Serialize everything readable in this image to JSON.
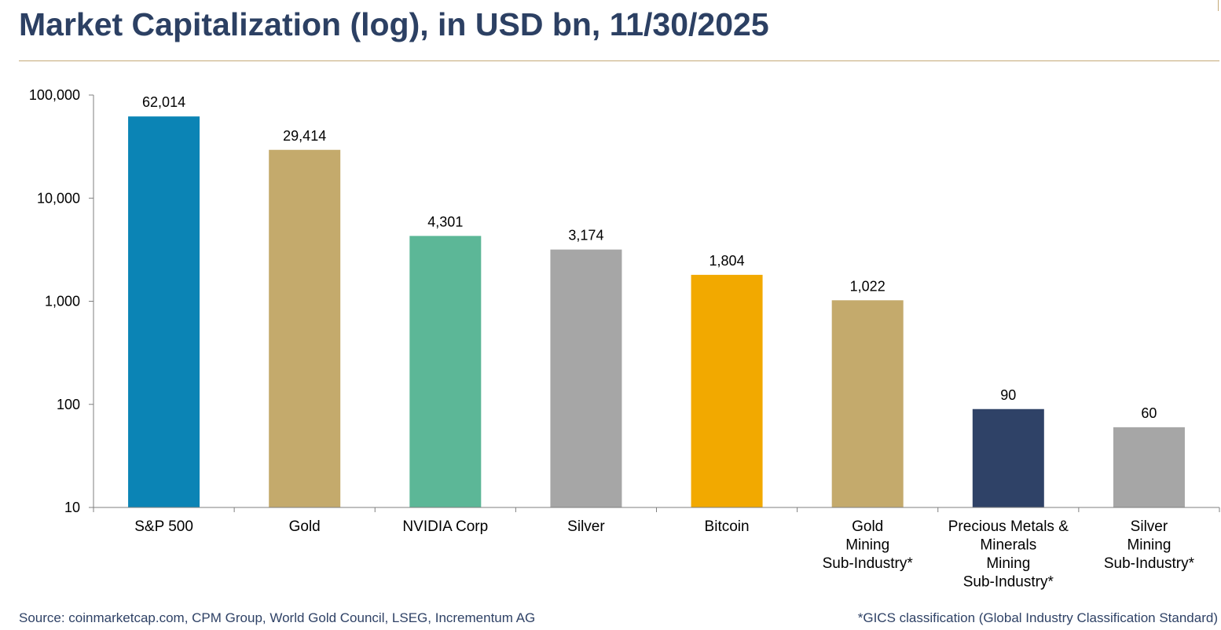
{
  "title": "Market Capitalization (log), in USD bn, 11/30/2025",
  "source": "Source: coinmarketcap.com, CPM Group, World Gold Council, LSEG, Incrementum AG",
  "footnote": "*GICS classification (Global Industry Classification Standard)",
  "chart_data": {
    "type": "bar",
    "title": "Market Capitalization (log), in USD bn, 11/30/2025",
    "xlabel": "",
    "ylabel": "",
    "yscale": "log",
    "ylim": [
      10,
      100000
    ],
    "yticks": [
      10,
      100,
      1000,
      10000,
      100000
    ],
    "ytick_labels": [
      "10",
      "100",
      "1,000",
      "10,000",
      "100,000"
    ],
    "grid": false,
    "legend": "none",
    "categories": [
      [
        "S&P 500"
      ],
      [
        "Gold"
      ],
      [
        "NVIDIA Corp"
      ],
      [
        "Silver"
      ],
      [
        "Bitcoin"
      ],
      [
        "Gold",
        "Mining",
        "Sub-Industry*"
      ],
      [
        "Precious Metals &",
        "Minerals",
        "Mining",
        "Sub-Industry*"
      ],
      [
        "Silver",
        "Mining",
        "Sub-Industry*"
      ]
    ],
    "values": [
      62014,
      29414,
      4301,
      3174,
      1804,
      1022,
      90,
      60
    ],
    "value_labels": [
      "62,014",
      "29,414",
      "4,301",
      "3,174",
      "1,804",
      "1,022",
      "90",
      "60"
    ],
    "colors": [
      "#0b84b5",
      "#c4aa6c",
      "#5cb797",
      "#a6a6a6",
      "#f2a900",
      "#c4aa6c",
      "#2f4267",
      "#a6a6a6"
    ]
  }
}
